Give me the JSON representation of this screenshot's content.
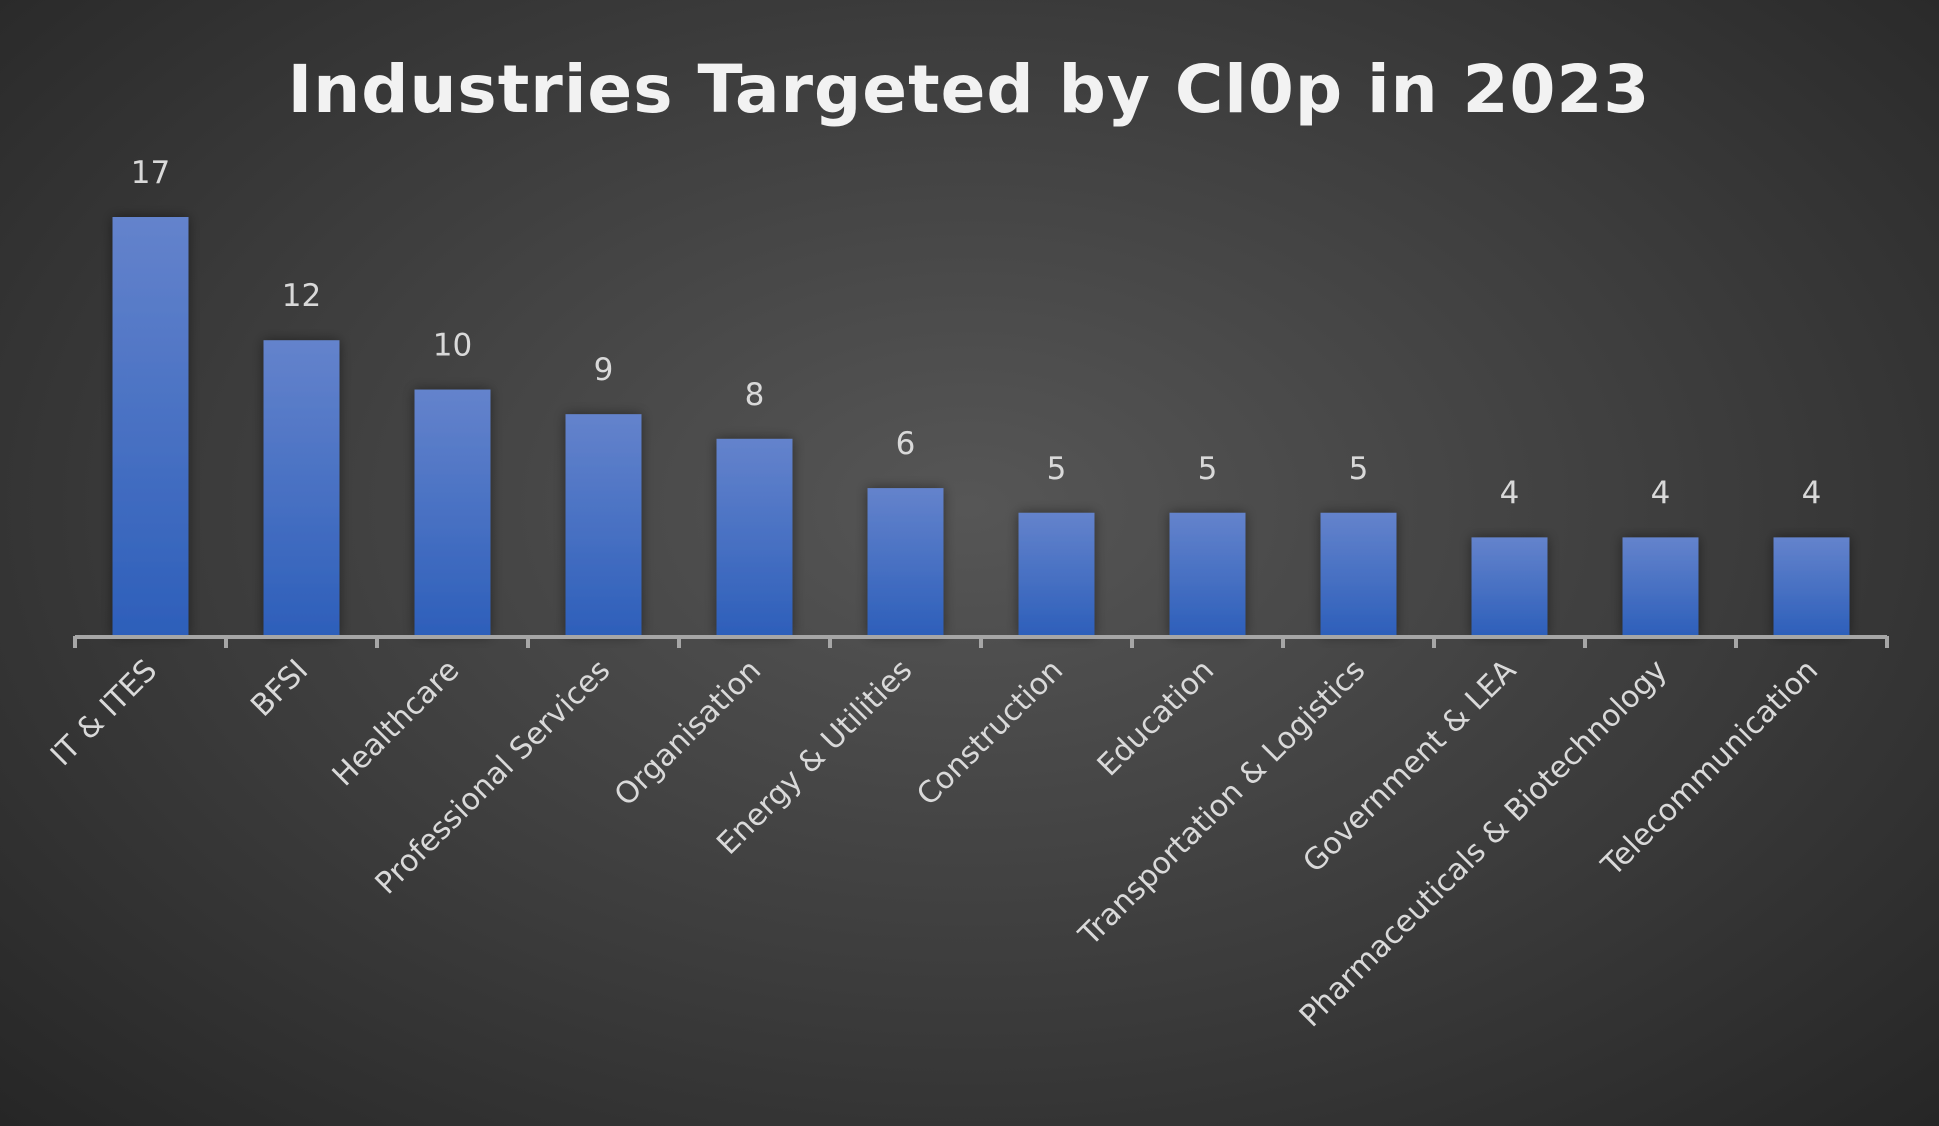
{
  "chart_data": {
    "type": "bar",
    "title": "Industries Targeted by Cl0p in 2023",
    "categories": [
      "IT & ITES",
      "BFSI",
      "Healthcare",
      "Professional Services",
      "Organisation",
      "Energy & Utilities",
      "Construction",
      "Education",
      "Transportation & Logistics",
      "Government & LEA",
      "Pharmaceuticals & Biotechnology",
      "Telecommunication"
    ],
    "values": [
      17,
      12,
      10,
      9,
      8,
      6,
      5,
      5,
      5,
      4,
      4,
      4
    ],
    "xlabel": "",
    "ylabel": "",
    "ylim": [
      0,
      17
    ],
    "grid": false,
    "legend": "none",
    "data_labels": true,
    "colors": {
      "bar_top": "#6483cc",
      "bar_bottom": "#2d5fba",
      "axis": "#a6a6a6",
      "background": "#404040"
    }
  }
}
